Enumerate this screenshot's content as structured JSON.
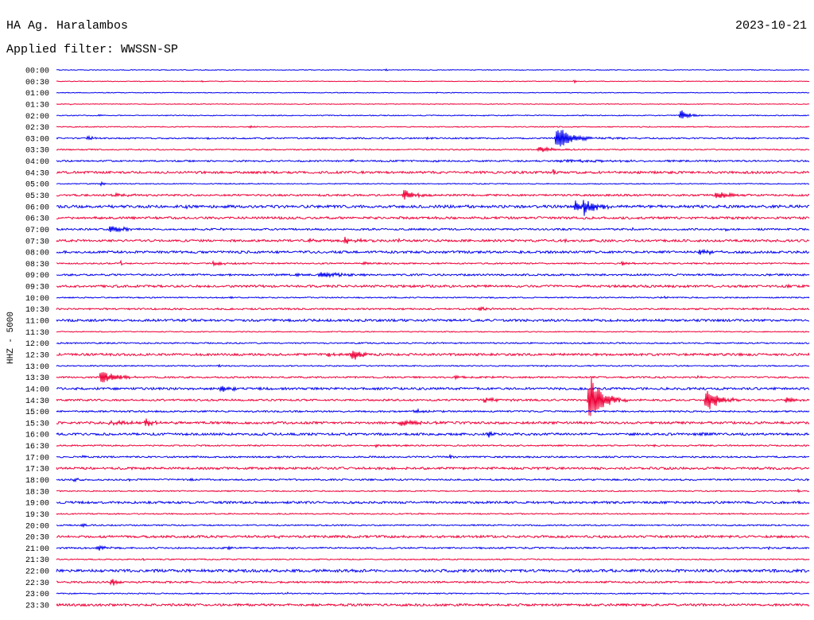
{
  "chart_data": {
    "type": "line",
    "title": "HA Ag. Haralambos",
    "date": "2023-10-21",
    "subtitle": "Applied filter: WWSSN-SP",
    "ylabel": "HHZ - 5000",
    "xlim": [
      0,
      30
    ],
    "grid": false,
    "colors": [
      "#0000ee",
      "#ee0038"
    ],
    "traces": [
      {
        "label": "00:00",
        "noise": 0.03,
        "events": [
          {
            "t": 13.07,
            "dur": 0.2,
            "amp": 0.15
          },
          {
            "t": 7.91,
            "dur": 0.1,
            "amp": 0.1
          },
          {
            "t": 26.4,
            "dur": 0.1,
            "amp": 0.1
          }
        ]
      },
      {
        "label": "00:30",
        "noise": 0.03,
        "events": [
          {
            "t": 5.03,
            "dur": 0.1,
            "amp": 0.15
          },
          {
            "t": 5.79,
            "dur": 0.1,
            "amp": 0.12
          },
          {
            "t": 20.6,
            "dur": 0.25,
            "amp": 0.2
          }
        ]
      },
      {
        "label": "01:00",
        "noise": 0.03,
        "events": [
          {
            "t": 8.07,
            "dur": 0.1,
            "amp": 0.1
          },
          {
            "t": 15.1,
            "dur": 0.2,
            "amp": 0.08
          }
        ]
      },
      {
        "label": "01:30",
        "noise": 0.03,
        "events": [
          {
            "t": 0.54,
            "dur": 0.1,
            "amp": 0.1
          },
          {
            "t": 15.0,
            "dur": 0.1,
            "amp": 0.08
          }
        ]
      },
      {
        "label": "02:00",
        "noise": 0.04,
        "events": [
          {
            "t": 24.8,
            "dur": 0.8,
            "amp": 0.6
          },
          {
            "t": 1.65,
            "dur": 0.15,
            "amp": 0.2
          },
          {
            "t": 17.0,
            "dur": 0.1,
            "amp": 0.1
          }
        ]
      },
      {
        "label": "02:30",
        "noise": 0.04,
        "events": [
          {
            "t": 7.6,
            "dur": 0.5,
            "amp": 0.12
          }
        ]
      },
      {
        "label": "03:00",
        "noise": 0.06,
        "events": [
          {
            "t": 19.85,
            "dur": 1.2,
            "amp": 1.25
          },
          {
            "t": 19.9,
            "dur": 6.0,
            "amp": 0.12
          },
          {
            "t": 1.15,
            "dur": 0.6,
            "amp": 0.25
          },
          {
            "t": 5.85,
            "dur": 0.6,
            "amp": 0.1
          },
          {
            "t": 14.7,
            "dur": 0.5,
            "amp": 0.1
          }
        ]
      },
      {
        "label": "03:30",
        "noise": 0.05,
        "events": [
          {
            "t": 19.15,
            "dur": 1.8,
            "amp": 0.25
          }
        ]
      },
      {
        "label": "04:00",
        "noise": 0.07,
        "events": [
          {
            "t": 19.9,
            "dur": 10.0,
            "amp": 0.08
          },
          {
            "t": 7.3,
            "dur": 0.3,
            "amp": 0.15
          },
          {
            "t": 11.7,
            "dur": 0.3,
            "amp": 0.12
          },
          {
            "t": 15.0,
            "dur": 0.3,
            "amp": 0.12
          }
        ]
      },
      {
        "label": "04:30",
        "noise": 0.1,
        "events": [
          {
            "t": 19.78,
            "dur": 0.15,
            "amp": 0.3
          }
        ]
      },
      {
        "label": "05:00",
        "noise": 0.04,
        "events": [
          {
            "t": 1.74,
            "dur": 0.3,
            "amp": 0.15
          }
        ]
      },
      {
        "label": "05:30",
        "noise": 0.08,
        "events": [
          {
            "t": 13.75,
            "dur": 1.3,
            "amp": 0.45
          },
          {
            "t": 26.2,
            "dur": 1.3,
            "amp": 0.45
          },
          {
            "t": 2.2,
            "dur": 2.8,
            "amp": 0.12
          }
        ]
      },
      {
        "label": "06:00",
        "noise": 0.12,
        "events": [
          {
            "t": 5.13,
            "dur": 0.15,
            "amp": 0.3
          },
          {
            "t": 20.6,
            "dur": 0.6,
            "amp": 0.65
          },
          {
            "t": 20.95,
            "dur": 1.3,
            "amp": 0.75
          }
        ]
      },
      {
        "label": "06:30",
        "noise": 0.1,
        "events": []
      },
      {
        "label": "07:00",
        "noise": 0.08,
        "events": [
          {
            "t": 2.06,
            "dur": 1.7,
            "amp": 0.3
          },
          {
            "t": 6.5,
            "dur": 0.2,
            "amp": 0.15
          },
          {
            "t": 22.9,
            "dur": 0.2,
            "amp": 0.15
          },
          {
            "t": 26.6,
            "dur": 0.3,
            "amp": 0.15
          }
        ]
      },
      {
        "label": "07:30",
        "noise": 0.1,
        "events": [
          {
            "t": 10.06,
            "dur": 0.3,
            "amp": 0.2
          },
          {
            "t": 11.4,
            "dur": 1.5,
            "amp": 0.25
          },
          {
            "t": 13.6,
            "dur": 0.4,
            "amp": 0.15
          },
          {
            "t": 20.25,
            "dur": 0.2,
            "amp": 0.12
          }
        ]
      },
      {
        "label": "08:00",
        "noise": 0.1,
        "events": [
          {
            "t": 25.47,
            "dur": 2.0,
            "amp": 0.25
          }
        ]
      },
      {
        "label": "08:30",
        "noise": 0.06,
        "events": [
          {
            "t": 2.53,
            "dur": 0.2,
            "amp": 0.18
          },
          {
            "t": 6.17,
            "dur": 1.3,
            "amp": 0.18
          },
          {
            "t": 12.18,
            "dur": 0.6,
            "amp": 0.15
          },
          {
            "t": 22.47,
            "dur": 1.1,
            "amp": 0.13
          }
        ]
      },
      {
        "label": "09:00",
        "noise": 0.08,
        "events": [
          {
            "t": 9.5,
            "dur": 0.4,
            "amp": 0.15
          },
          {
            "t": 10.38,
            "dur": 2.4,
            "amp": 0.25
          }
        ]
      },
      {
        "label": "09:30",
        "noise": 0.1,
        "events": [
          {
            "t": 15.95,
            "dur": 0.15,
            "amp": 0.25
          },
          {
            "t": 29.1,
            "dur": 0.3,
            "amp": 0.15
          }
        ]
      },
      {
        "label": "10:00",
        "noise": 0.05,
        "events": [
          {
            "t": 6.9,
            "dur": 0.2,
            "amp": 0.2
          },
          {
            "t": 24.05,
            "dur": 0.5,
            "amp": 0.15
          }
        ]
      },
      {
        "label": "10:30",
        "noise": 0.07,
        "events": [
          {
            "t": 16.8,
            "dur": 0.8,
            "amp": 0.2
          },
          {
            "t": 6.3,
            "dur": 0.2,
            "amp": 0.1
          },
          {
            "t": 28.3,
            "dur": 0.3,
            "amp": 0.12
          }
        ]
      },
      {
        "label": "11:00",
        "noise": 0.1,
        "events": []
      },
      {
        "label": "11:30",
        "noise": 0.04,
        "events": [
          {
            "t": 12.2,
            "dur": 0.1,
            "amp": 0.08
          }
        ]
      },
      {
        "label": "12:00",
        "noise": 0.06,
        "events": []
      },
      {
        "label": "12:30",
        "noise": 0.1,
        "events": [
          {
            "t": 10.76,
            "dur": 1.0,
            "amp": 0.15
          },
          {
            "t": 11.7,
            "dur": 1.0,
            "amp": 0.6
          }
        ]
      },
      {
        "label": "13:00",
        "noise": 0.05,
        "events": [
          {
            "t": 6.45,
            "dur": 0.15,
            "amp": 0.2
          },
          {
            "t": 12.0,
            "dur": 0.15,
            "amp": 0.15
          },
          {
            "t": 19.5,
            "dur": 0.1,
            "amp": 0.1
          }
        ]
      },
      {
        "label": "13:30",
        "noise": 0.07,
        "events": [
          {
            "t": 1.7,
            "dur": 1.6,
            "amp": 0.6
          },
          {
            "t": 15.8,
            "dur": 3.2,
            "amp": 0.12
          },
          {
            "t": 25.5,
            "dur": 0.3,
            "amp": 0.18
          }
        ]
      },
      {
        "label": "14:00",
        "noise": 0.1,
        "events": [
          {
            "t": 5.13,
            "dur": 0.3,
            "amp": 0.2
          },
          {
            "t": 6.49,
            "dur": 1.3,
            "amp": 0.25
          }
        ]
      },
      {
        "label": "14:30",
        "noise": 0.08,
        "events": [
          {
            "t": 16.93,
            "dur": 1.7,
            "amp": 0.25
          },
          {
            "t": 21.15,
            "dur": 1.4,
            "amp": 2.5
          },
          {
            "t": 25.8,
            "dur": 1.4,
            "amp": 1.1
          },
          {
            "t": 28.96,
            "dur": 1.1,
            "amp": 0.25
          }
        ]
      },
      {
        "label": "15:00",
        "noise": 0.07,
        "events": [
          {
            "t": 14.18,
            "dur": 1.5,
            "amp": 0.18
          },
          {
            "t": 5.85,
            "dur": 0.2,
            "amp": 0.1
          }
        ]
      },
      {
        "label": "15:30",
        "noise": 0.1,
        "events": [
          {
            "t": 2.06,
            "dur": 2.8,
            "amp": 0.2
          },
          {
            "t": 3.48,
            "dur": 0.6,
            "amp": 0.4
          },
          {
            "t": 13.6,
            "dur": 2.0,
            "amp": 0.25
          }
        ]
      },
      {
        "label": "16:00",
        "noise": 0.1,
        "events": [
          {
            "t": 17.12,
            "dur": 0.5,
            "amp": 0.4
          },
          {
            "t": 25.63,
            "dur": 0.3,
            "amp": 0.25
          }
        ]
      },
      {
        "label": "16:30",
        "noise": 0.06,
        "events": [
          {
            "t": 12.66,
            "dur": 1.3,
            "amp": 0.15
          },
          {
            "t": 23.8,
            "dur": 0.2,
            "amp": 0.12
          }
        ]
      },
      {
        "label": "17:00",
        "noise": 0.07,
        "events": [
          {
            "t": 0.95,
            "dur": 0.5,
            "amp": 0.1
          },
          {
            "t": 15.6,
            "dur": 0.5,
            "amp": 0.1
          }
        ]
      },
      {
        "label": "17:30",
        "noise": 0.1,
        "events": []
      },
      {
        "label": "18:00",
        "noise": 0.07,
        "events": [
          {
            "t": 0.63,
            "dur": 0.7,
            "amp": 0.18
          },
          {
            "t": 2.85,
            "dur": 0.2,
            "amp": 0.2
          },
          {
            "t": 5.3,
            "dur": 0.2,
            "amp": 0.2
          }
        ]
      },
      {
        "label": "18:30",
        "noise": 0.05,
        "events": [
          {
            "t": 16.9,
            "dur": 0.2,
            "amp": 0.12
          },
          {
            "t": 29.5,
            "dur": 0.2,
            "amp": 0.15
          }
        ]
      },
      {
        "label": "19:00",
        "noise": 0.1,
        "events": []
      },
      {
        "label": "19:30",
        "noise": 0.05,
        "events": []
      },
      {
        "label": "20:00",
        "noise": 0.06,
        "events": [
          {
            "t": 0.95,
            "dur": 0.6,
            "amp": 0.18
          },
          {
            "t": 19.0,
            "dur": 0.2,
            "amp": 0.1
          }
        ]
      },
      {
        "label": "20:30",
        "noise": 0.1,
        "events": [
          {
            "t": 8.83,
            "dur": 0.15,
            "amp": 0.25
          }
        ]
      },
      {
        "label": "21:00",
        "noise": 0.07,
        "events": [
          {
            "t": 1.58,
            "dur": 1.0,
            "amp": 0.22
          },
          {
            "t": 6.8,
            "dur": 0.4,
            "amp": 0.2
          },
          {
            "t": 28.35,
            "dur": 0.15,
            "amp": 0.15
          }
        ]
      },
      {
        "label": "21:30",
        "noise": 0.05,
        "events": [
          {
            "t": 3.42,
            "dur": 0.15,
            "amp": 0.15
          }
        ]
      },
      {
        "label": "22:00",
        "noise": 0.12,
        "events": []
      },
      {
        "label": "22:30",
        "noise": 0.08,
        "events": [
          {
            "t": 2.12,
            "dur": 0.6,
            "amp": 0.4
          }
        ]
      },
      {
        "label": "23:00",
        "noise": 0.05,
        "events": [
          {
            "t": 9.2,
            "dur": 0.1,
            "amp": 0.1
          }
        ]
      },
      {
        "label": "23:30",
        "noise": 0.1,
        "events": []
      }
    ]
  }
}
